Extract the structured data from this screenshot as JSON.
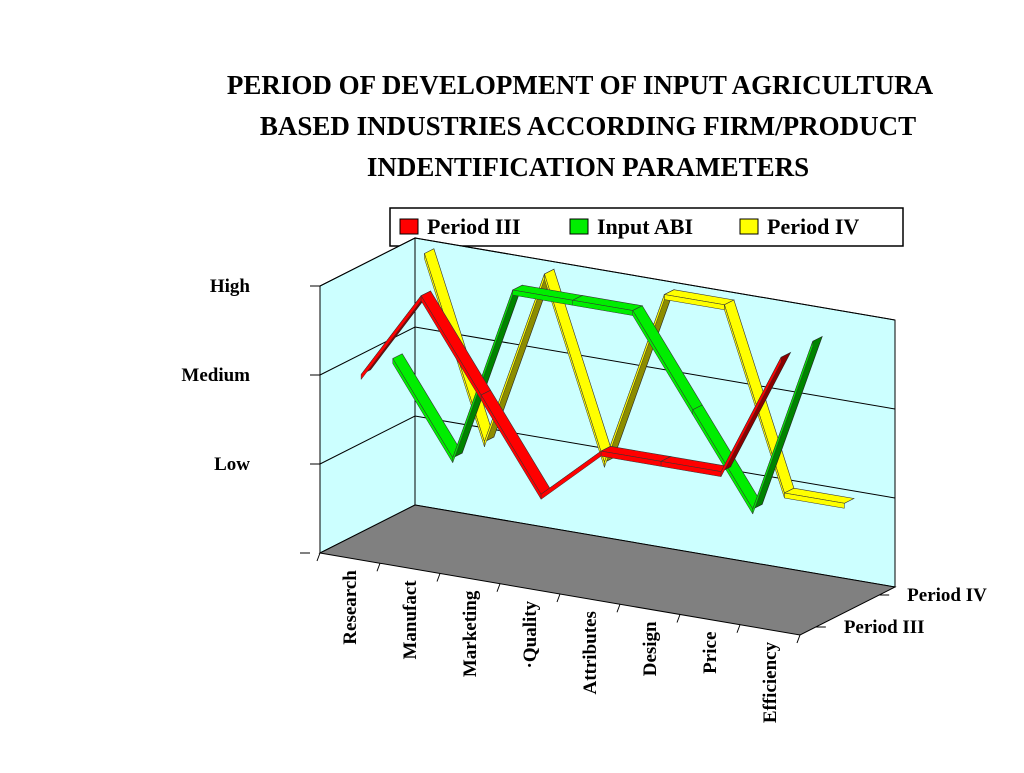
{
  "chart_data": {
    "type": "line3d",
    "title": [
      "PERIOD OF DEVELOPMENT OF INPUT  AGRICULTURA",
      "BASED INDUSTRIES ACCORDING FIRM/PRODUCT",
      "INDENTIFICATION PARAMETERS"
    ],
    "categories": [
      "Research",
      "Manufact",
      "Marketing",
      "·Quality",
      "Attributes",
      "Design",
      "Price",
      "Efficiency"
    ],
    "series": [
      {
        "name": "Period III",
        "color": "#ff0000",
        "values": [
          2,
          3,
          2,
          1,
          1.6,
          1.6,
          1.6,
          3
        ]
      },
      {
        "name": "Input ABI",
        "color": "#00ee00",
        "values": [
          2,
          1,
          3,
          3,
          3,
          2,
          1,
          3
        ]
      },
      {
        "name": "Period IV",
        "color": "#ffff00",
        "values": [
          3,
          1,
          3,
          1,
          3,
          3,
          1,
          1
        ]
      }
    ],
    "depth_labels": [
      "Period III",
      "Period IV"
    ],
    "ylim": [
      0,
      3
    ],
    "yticks": [
      {
        "value": 1,
        "label": "Low"
      },
      {
        "value": 2,
        "label": "Medium"
      },
      {
        "value": 3,
        "label": "High"
      }
    ],
    "grid": true,
    "legend": "top"
  }
}
